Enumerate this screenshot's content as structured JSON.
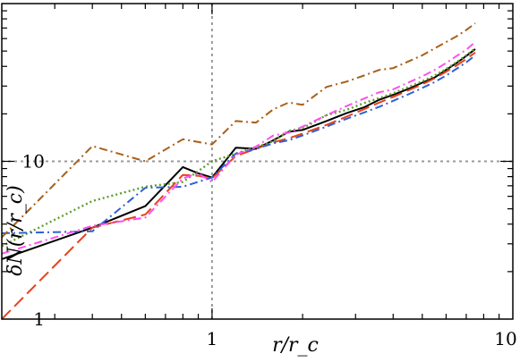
{
  "chart_data": {
    "type": "line",
    "title": "",
    "xlabel": "r/r_c",
    "ylabel": "δN(r/r_c)",
    "xscale": "log",
    "yscale": "log",
    "xlim": [
      0.2,
      10
    ],
    "ylim": [
      1,
      100
    ],
    "xticks": [
      {
        "value": 1,
        "label": "1"
      },
      {
        "value": 10,
        "label": "10"
      }
    ],
    "yticks": [
      {
        "value": 1,
        "label": "1"
      },
      {
        "value": 10,
        "label": "10"
      }
    ],
    "reference_lines": [
      {
        "axis": "x",
        "value": 1,
        "style": "dotted",
        "color": "#999999"
      },
      {
        "axis": "y",
        "value": 10,
        "style": "dotted",
        "color": "#999999"
      }
    ],
    "grid": false,
    "legend": "none",
    "series": [
      {
        "color": "#000000",
        "dash": "solid",
        "points": [
          [
            0.2,
            2.4
          ],
          [
            0.4,
            3.8
          ],
          [
            0.6,
            5.2
          ],
          [
            0.8,
            9.2
          ],
          [
            0.9,
            8.4
          ],
          [
            1.0,
            7.9
          ],
          [
            1.2,
            12.2
          ],
          [
            1.4,
            12.0
          ],
          [
            1.6,
            13.6
          ],
          [
            1.8,
            15.4
          ],
          [
            2.0,
            15.8
          ],
          [
            2.4,
            18.0
          ],
          [
            2.8,
            20.2
          ],
          [
            3.2,
            22.0
          ],
          [
            3.6,
            24.6
          ],
          [
            4.0,
            26.4
          ],
          [
            4.5,
            28.8
          ],
          [
            5.0,
            31.5
          ],
          [
            5.5,
            34.0
          ],
          [
            6.0,
            38.0
          ],
          [
            6.5,
            42.0
          ],
          [
            7.0,
            46.5
          ],
          [
            7.5,
            51.5
          ]
        ]
      },
      {
        "color": "#e8401c",
        "dash": "long-dash",
        "points": [
          [
            0.2,
            1.0
          ],
          [
            0.4,
            3.8
          ],
          [
            0.6,
            4.6
          ],
          [
            0.8,
            8.2
          ],
          [
            0.9,
            8.1
          ],
          [
            1.0,
            7.8
          ],
          [
            1.2,
            10.8
          ],
          [
            1.4,
            12.0
          ],
          [
            1.6,
            13.2
          ],
          [
            1.8,
            14.0
          ],
          [
            2.0,
            15.0
          ],
          [
            2.4,
            17.0
          ],
          [
            2.8,
            19.2
          ],
          [
            3.2,
            21.4
          ],
          [
            3.6,
            23.6
          ],
          [
            4.0,
            25.6
          ],
          [
            4.5,
            28.2
          ],
          [
            5.0,
            30.8
          ],
          [
            5.5,
            33.6
          ],
          [
            6.0,
            37.0
          ],
          [
            6.5,
            40.5
          ],
          [
            7.0,
            44.5
          ],
          [
            7.5,
            49.0
          ]
        ]
      },
      {
        "color": "#5f9e2f",
        "dash": "dotted",
        "points": [
          [
            0.2,
            2.9
          ],
          [
            0.4,
            5.6
          ],
          [
            0.6,
            6.9
          ],
          [
            0.8,
            7.4
          ],
          [
            1.0,
            10.0
          ],
          [
            1.2,
            11.2
          ],
          [
            1.4,
            12.3
          ],
          [
            1.6,
            13.4
          ],
          [
            1.8,
            15.6
          ],
          [
            2.0,
            16.2
          ],
          [
            2.4,
            19.6
          ],
          [
            2.8,
            21.2
          ],
          [
            3.2,
            23.4
          ],
          [
            3.6,
            25.2
          ],
          [
            4.0,
            27.0
          ],
          [
            4.5,
            29.6
          ],
          [
            5.0,
            32.2
          ],
          [
            5.5,
            35.0
          ],
          [
            6.0,
            38.5
          ],
          [
            6.5,
            42.5
          ],
          [
            7.0,
            47.0
          ],
          [
            7.5,
            52.0
          ]
        ]
      },
      {
        "color": "#2f5fd8",
        "dash": "dash-dot",
        "points": [
          [
            0.2,
            3.5
          ],
          [
            0.4,
            3.6
          ],
          [
            0.6,
            6.8
          ],
          [
            0.8,
            6.9
          ],
          [
            1.0,
            7.9
          ],
          [
            1.2,
            11.2
          ],
          [
            1.4,
            12.0
          ],
          [
            1.6,
            13.0
          ],
          [
            1.8,
            13.6
          ],
          [
            2.0,
            14.6
          ],
          [
            2.4,
            16.6
          ],
          [
            2.8,
            18.6
          ],
          [
            3.2,
            20.4
          ],
          [
            3.6,
            22.2
          ],
          [
            4.0,
            24.2
          ],
          [
            4.5,
            26.6
          ],
          [
            5.0,
            29.2
          ],
          [
            5.5,
            31.8
          ],
          [
            6.0,
            35.0
          ],
          [
            6.5,
            38.6
          ],
          [
            7.0,
            42.4
          ],
          [
            7.5,
            47.0
          ]
        ]
      },
      {
        "color": "#ff4ff0",
        "dash": "dash-dot",
        "points": [
          [
            0.2,
            2.6
          ],
          [
            0.4,
            3.9
          ],
          [
            0.6,
            4.4
          ],
          [
            0.8,
            7.8
          ],
          [
            0.9,
            8.4
          ],
          [
            1.0,
            7.4
          ],
          [
            1.2,
            11.0
          ],
          [
            1.4,
            12.4
          ],
          [
            1.6,
            14.6
          ],
          [
            1.8,
            15.2
          ],
          [
            2.0,
            16.6
          ],
          [
            2.4,
            19.6
          ],
          [
            2.8,
            22.4
          ],
          [
            3.2,
            25.0
          ],
          [
            3.6,
            27.4
          ],
          [
            4.0,
            28.6
          ],
          [
            4.5,
            31.6
          ],
          [
            5.0,
            34.6
          ],
          [
            5.5,
            38.0
          ],
          [
            6.0,
            42.0
          ],
          [
            6.5,
            46.5
          ],
          [
            7.0,
            51.0
          ],
          [
            7.5,
            57.0
          ]
        ]
      },
      {
        "color": "#a8601a",
        "dash": "dash-dot",
        "points": [
          [
            0.2,
            3.3
          ],
          [
            0.4,
            12.5
          ],
          [
            0.6,
            10.0
          ],
          [
            0.8,
            13.8
          ],
          [
            1.0,
            12.8
          ],
          [
            1.2,
            18.0
          ],
          [
            1.4,
            17.6
          ],
          [
            1.6,
            21.4
          ],
          [
            1.8,
            23.6
          ],
          [
            2.0,
            22.8
          ],
          [
            2.4,
            29.6
          ],
          [
            2.8,
            32.0
          ],
          [
            3.2,
            35.0
          ],
          [
            3.6,
            38.0
          ],
          [
            4.0,
            39.0
          ],
          [
            4.5,
            43.0
          ],
          [
            5.0,
            47.0
          ],
          [
            5.5,
            52.0
          ],
          [
            6.0,
            57.0
          ],
          [
            6.5,
            62.0
          ],
          [
            7.0,
            68.0
          ],
          [
            7.5,
            75.0
          ]
        ]
      }
    ]
  }
}
